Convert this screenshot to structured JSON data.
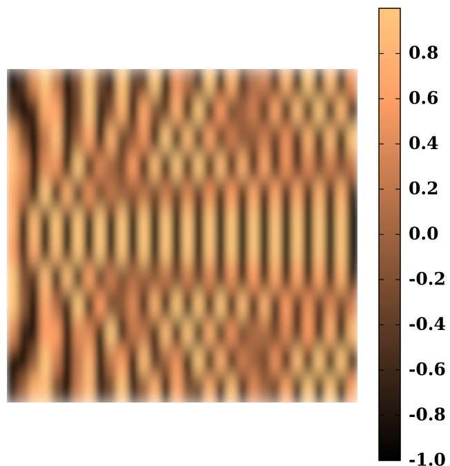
{
  "chart_data": {
    "type": "heatmap",
    "colormap": "copper",
    "clim": [
      -1,
      1
    ],
    "colorbar_ticks": [
      {
        "value": -1.0,
        "label": "-1.0"
      },
      -0.8,
      -0.6,
      -0.4,
      -0.2,
      {
        "value": 0,
        "label": "0.0"
      },
      0.2,
      0.4,
      0.6,
      0.8
    ],
    "values": [
      [
        -1,
        -0.5,
        0.4,
        1,
        0.2,
        -1,
        -0.2,
        1,
        -0.3,
        -0.7,
        1,
        -0.4,
        -0.5,
        1,
        -0.9,
        0.5,
        0.1,
        -0.7,
        1,
        -1,
        0.8,
        -0.5,
        0.1,
        0.3,
        -0.6,
        0.8,
        -1,
        1,
        -1,
        0.9,
        -0.7,
        0.5
      ],
      [
        -0.4,
        -1,
        -0.6,
        0.7,
        0.7,
        -0.8,
        -0.3,
        1,
        -0.7,
        -0.2,
        0.8,
        -1,
        0.7,
        -0.2,
        -0.4,
        0.8,
        -1,
        1,
        -0.9,
        0.6,
        -0.3,
        0,
        0.3,
        -0.5,
        0.7,
        -0.9,
        0.9,
        -1,
        1,
        -1,
        0.9,
        -0.8
      ],
      [
        0.8,
        -0.2,
        -1,
        0.2,
        0.9,
        -0.8,
        0,
        0.7,
        -1,
        0.8,
        -0.4,
        -0.1,
        0.5,
        -0.8,
        1,
        -1,
        0.9,
        -0.8,
        0.7,
        -0.5,
        0.3,
        -0.1,
        -0.1,
        0.3,
        -0.4,
        0.5,
        -0.7,
        0.8,
        -0.8,
        0.9,
        -0.9,
        1
      ],
      [
        0.9,
        0.4,
        -1,
        0.4,
        0.5,
        -0.9,
        1,
        -0.7,
        0.4,
        0,
        -0.3,
        0.6,
        -0.8,
        0.9,
        -1,
        1,
        -1,
        1,
        -0.9,
        0.9,
        -0.8,
        0.8,
        -0.7,
        0.7,
        -0.6,
        0.5,
        -0.5,
        0.4,
        -0.3,
        0.3,
        -0.2,
        0.2
      ],
      [
        0.7,
        0.2,
        -0.8,
        1,
        -1,
        0.8,
        -0.7,
        0.5,
        -0.3,
        0.2,
        0,
        -0.1,
        0.2,
        -0.3,
        0.3,
        -0.4,
        0.4,
        -0.5,
        0.5,
        -0.6,
        0.6,
        -0.6,
        0.7,
        -0.7,
        0.7,
        -0.7,
        0.7,
        -0.8,
        0.8,
        -0.8,
        0.8,
        -0.8
      ],
      [
        0.8,
        -0.9,
        0.9,
        -0.9,
        1,
        -1,
        1,
        -1,
        1,
        -1,
        1,
        -1,
        1,
        -1,
        1,
        -1,
        1,
        -1,
        1,
        -1,
        1,
        -1,
        1,
        -1,
        1,
        -1,
        1,
        -1,
        1,
        -1,
        1,
        -1
      ],
      [
        0.6,
        -0.7,
        0.8,
        -0.9,
        0.9,
        -0.9,
        1,
        -1,
        1,
        -1,
        1,
        -1,
        1,
        -1,
        1,
        -1,
        1,
        -1,
        1,
        -1,
        1,
        -1,
        1,
        -1,
        1,
        -1,
        1,
        -1,
        1,
        -1,
        1,
        -1
      ],
      [
        1,
        -0.2,
        -0.5,
        0.9,
        -1,
        0.9,
        -0.8,
        0.7,
        -0.5,
        0.3,
        -0.2,
        0.1,
        0,
        -0.1,
        0.2,
        -0.3,
        0.3,
        -0.4,
        0.4,
        -0.5,
        0.5,
        -0.6,
        0.6,
        -0.6,
        0.7,
        -0.7,
        0.7,
        -0.7,
        0.7,
        -0.7,
        0.8,
        -0.8
      ],
      [
        1,
        -0.1,
        -1,
        0.7,
        0.1,
        -0.8,
        1,
        -0.9,
        0.6,
        -0.3,
        -0.1,
        0.4,
        -0.6,
        0.8,
        -0.9,
        1,
        -1,
        1,
        -1,
        1,
        -0.9,
        0.9,
        -0.8,
        0.8,
        -0.7,
        0.6,
        -0.6,
        0.5,
        -0.5,
        0.4,
        -0.3,
        0.3
      ],
      [
        0.4,
        -0.7,
        -0.8,
        0.6,
        0.6,
        -1,
        0.4,
        0.4,
        -0.9,
        1,
        -0.7,
        0.2,
        0.2,
        -0.6,
        0.9,
        -1,
        1,
        -0.9,
        0.8,
        -0.7,
        0.5,
        -0.3,
        0.1,
        0.1,
        -0.3,
        0.4,
        -0.5,
        0.6,
        -0.7,
        0.8,
        -0.9,
        0.9
      ],
      [
        -0.9,
        -0.9,
        -0.1,
        1,
        0.3,
        -1,
        0.2,
        0.8,
        -0.9,
        0.2,
        0.6,
        -1,
        0.9,
        -0.5,
        0,
        0.5,
        -0.9,
        1,
        -1,
        0.8,
        -0.6,
        0.3,
        0,
        -0.3,
        0.5,
        -0.7,
        0.9,
        -0.9,
        1,
        -1,
        1,
        -0.9
      ],
      [
        -0.7,
        0,
        0.8,
        0.9,
        -0.3,
        -1,
        0.3,
        0.9,
        -0.7,
        -0.3,
        1,
        -0.7,
        -0.1,
        0.8,
        -1,
        0.7,
        -0.2,
        -0.4,
        0.8,
        -1,
        0.9,
        -0.7,
        0.4,
        0,
        -0.4,
        0.7,
        -0.9,
        1,
        -1,
        1,
        -0.9,
        0.7
      ]
    ]
  }
}
